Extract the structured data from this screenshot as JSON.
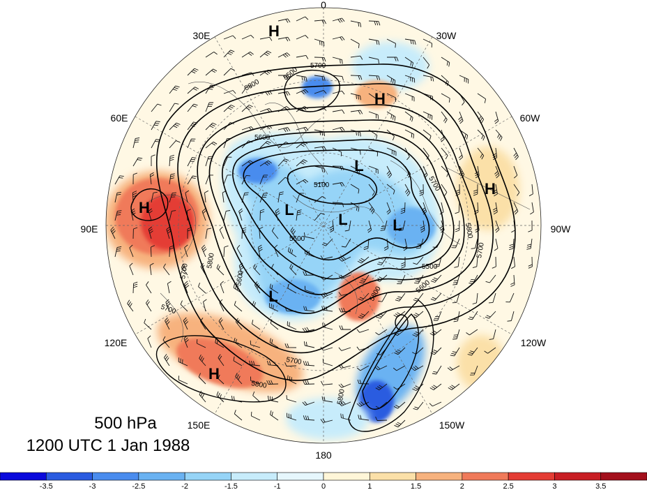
{
  "title": {
    "level": "500 hPa",
    "time": "1200 UTC 1 Jan 1988"
  },
  "longitude_labels": {
    "lon_0": "0",
    "lon_30w": "30W",
    "lon_60w": "60W",
    "lon_90w": "90W",
    "lon_120w": "120W",
    "lon_150w": "150W",
    "lon_180": "180",
    "lon_150e": "150E",
    "lon_120e": "120E",
    "lon_90e": "90E",
    "lon_60e": "60E",
    "lon_30e": "30E"
  },
  "pressure_centers": [
    {
      "type": "H",
      "label": "H"
    },
    {
      "type": "H",
      "label": "H"
    },
    {
      "type": "H",
      "label": "H"
    },
    {
      "type": "H",
      "label": "H"
    },
    {
      "type": "H",
      "label": "H"
    },
    {
      "type": "L",
      "label": "L"
    },
    {
      "type": "L",
      "label": "L"
    },
    {
      "type": "L",
      "label": "L"
    },
    {
      "type": "L",
      "label": "L"
    },
    {
      "type": "L",
      "label": "L"
    }
  ],
  "contour_labels": [
    "5700",
    "5800",
    "5600",
    "5500",
    "5100",
    "5700",
    "5800",
    "5600",
    "5500",
    "5700",
    "5800",
    "5700",
    "5800",
    "5500",
    "5700",
    "5600",
    "5800",
    "5700",
    "5800"
  ],
  "colorbar": {
    "tick_labels": [
      "-3.5",
      "-3",
      "-2.5",
      "-2",
      "-1.5",
      "-1",
      "0",
      "1",
      "1.5",
      "2",
      "2.5",
      "3",
      "3.5"
    ],
    "colors": [
      "#0a0adc",
      "#2a5be0",
      "#4a8cee",
      "#6ab2f2",
      "#96d4f7",
      "#c7ecfb",
      "#e6f7fd",
      "#fff6d8",
      "#fbe0a8",
      "#f7b27e",
      "#f07a5a",
      "#e43c34",
      "#c81e24",
      "#a3101c"
    ]
  },
  "colors": {
    "map_background": "#fff8e4",
    "contour_line": "#000000"
  }
}
